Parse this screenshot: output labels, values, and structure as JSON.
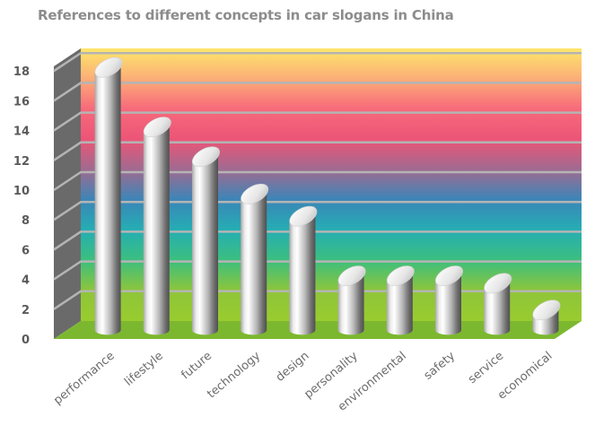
{
  "chart_data": {
    "type": "bar",
    "title": "References to different concepts in car slogans in China",
    "xlabel": "",
    "ylabel": "",
    "categories": [
      "performance",
      "lifestyle",
      "future",
      "technology",
      "design",
      "personality",
      "environmental",
      "safety",
      "service",
      "economical"
    ],
    "values": [
      18,
      14,
      12,
      9.5,
      8,
      4,
      4,
      4,
      3.5,
      1.7
    ],
    "ylim": [
      0,
      19
    ],
    "yticks": [
      0,
      2,
      4,
      6,
      8,
      10,
      12,
      14,
      16,
      18
    ],
    "grid": true,
    "legend": "none",
    "bar_shape": "3D cylinders",
    "colors": {
      "bar": "#c8c8c8",
      "gridline": "#b4b4b4",
      "side_wall": "#6a6a6a",
      "floor": "#7cb82f",
      "background_gradient": [
        "#fde76a",
        "#fcae77",
        "#f76a7b",
        "#ec5577",
        "#a06a90",
        "#3a86b8",
        "#25aeb3",
        "#3cbf7e",
        "#8ec53a",
        "#99cc2e"
      ]
    }
  }
}
